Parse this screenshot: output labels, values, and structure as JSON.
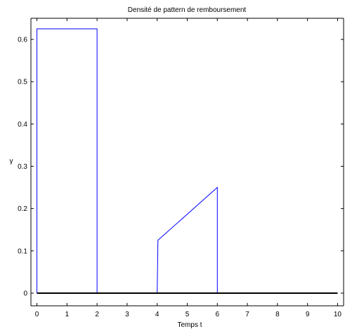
{
  "chart_data": {
    "type": "line",
    "title": "Densité de pattern de remboursement",
    "xlabel": "Temps t",
    "ylabel": "γ",
    "xlim": [
      -0.2,
      10.2
    ],
    "ylim": [
      -0.03,
      0.65
    ],
    "xticks": [
      0,
      1,
      2,
      3,
      4,
      5,
      6,
      7,
      8,
      9,
      10
    ],
    "yticks": [
      0,
      0.1,
      0.2,
      0.3,
      0.4,
      0.5,
      0.6
    ],
    "xtick_labels": [
      "0",
      "1",
      "2",
      "3",
      "4",
      "5",
      "6",
      "7",
      "8",
      "9",
      "10"
    ],
    "ytick_labels": [
      "0",
      "0.1",
      "0.2",
      "0.3",
      "0.4",
      "0.5",
      "0.6"
    ],
    "grid": false,
    "series": [
      {
        "color": "#0000ff",
        "x": [
          0,
          0,
          2,
          2,
          4,
          4.025,
          6,
          6,
          10
        ],
        "y": [
          0,
          0.625,
          0.625,
          0,
          0,
          0.125,
          0.25,
          0,
          0
        ]
      }
    ],
    "baseline": {
      "y": 0,
      "x_from": 0,
      "x_to": 10,
      "color": "#000000"
    }
  }
}
